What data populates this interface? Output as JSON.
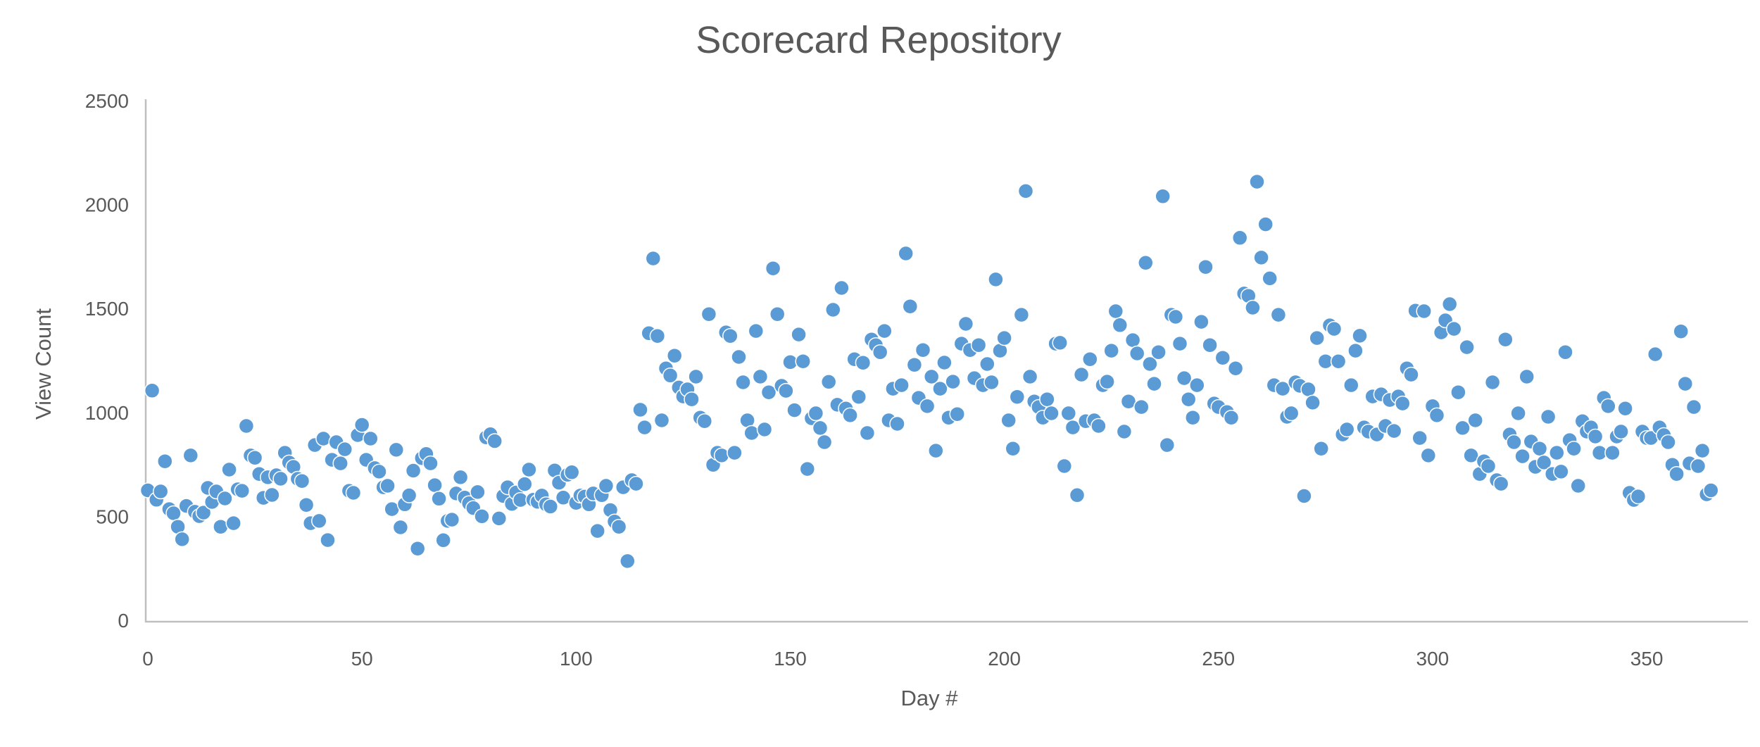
{
  "chart_data": {
    "type": "scatter",
    "title": "Scorecard Repository",
    "xlabel": "Day #",
    "ylabel": "View Count",
    "xlim": [
      0,
      374
    ],
    "ylim": [
      0,
      2500
    ],
    "x_ticks": [
      0,
      50,
      100,
      150,
      200,
      250,
      300,
      350
    ],
    "y_ticks": [
      0,
      500,
      1000,
      1500,
      2000,
      2500
    ],
    "grid": false,
    "legend": "none",
    "marker_color": "#5B9BD5",
    "marker_halo_color": "#FFFFFF",
    "axis_line_color": "#BFBFBF",
    "text_color": "#595959",
    "points": [
      [
        0,
        625
      ],
      [
        1,
        1105
      ],
      [
        2,
        580
      ],
      [
        3,
        620
      ],
      [
        4,
        765
      ],
      [
        5,
        535
      ],
      [
        6,
        515
      ],
      [
        7,
        450
      ],
      [
        8,
        390
      ],
      [
        9,
        550
      ],
      [
        10,
        793
      ],
      [
        11,
        522
      ],
      [
        12,
        501
      ],
      [
        13,
        518
      ],
      [
        14,
        637
      ],
      [
        15,
        569
      ],
      [
        16,
        620
      ],
      [
        17,
        450
      ],
      [
        18,
        586
      ],
      [
        19,
        725
      ],
      [
        20,
        467
      ],
      [
        21,
        630
      ],
      [
        22,
        623
      ],
      [
        23,
        935
      ],
      [
        24,
        793
      ],
      [
        25,
        782
      ],
      [
        26,
        704
      ],
      [
        27,
        589
      ],
      [
        28,
        688
      ],
      [
        29,
        603
      ],
      [
        30,
        698
      ],
      [
        31,
        681
      ],
      [
        32,
        806
      ],
      [
        33,
        759
      ],
      [
        34,
        738
      ],
      [
        35,
        681
      ],
      [
        36,
        670
      ],
      [
        37,
        555
      ],
      [
        38,
        467
      ],
      [
        39,
        843
      ],
      [
        40,
        478
      ],
      [
        41,
        874
      ],
      [
        42,
        386
      ],
      [
        43,
        772
      ],
      [
        44,
        857
      ],
      [
        45,
        755
      ],
      [
        46,
        823
      ],
      [
        47,
        623
      ],
      [
        48,
        613
      ],
      [
        49,
        891
      ],
      [
        50,
        940
      ],
      [
        51,
        772
      ],
      [
        52,
        874
      ],
      [
        53,
        732
      ],
      [
        54,
        715
      ],
      [
        55,
        640
      ],
      [
        56,
        647
      ],
      [
        57,
        535
      ],
      [
        58,
        820
      ],
      [
        59,
        447
      ],
      [
        60,
        558
      ],
      [
        61,
        601
      ],
      [
        62,
        720
      ],
      [
        63,
        345
      ],
      [
        64,
        780
      ],
      [
        65,
        800
      ],
      [
        66,
        755
      ],
      [
        67,
        650
      ],
      [
        68,
        585
      ],
      [
        69,
        385
      ],
      [
        70,
        478
      ],
      [
        71,
        484
      ],
      [
        72,
        610
      ],
      [
        73,
        688
      ],
      [
        74,
        590
      ],
      [
        75,
        563
      ],
      [
        76,
        540
      ],
      [
        77,
        617
      ],
      [
        78,
        500
      ],
      [
        79,
        880
      ],
      [
        80,
        895
      ],
      [
        81,
        862
      ],
      [
        82,
        490
      ],
      [
        83,
        598
      ],
      [
        84,
        640
      ],
      [
        85,
        560
      ],
      [
        86,
        615
      ],
      [
        87,
        579
      ],
      [
        88,
        655
      ],
      [
        89,
        725
      ],
      [
        90,
        580
      ],
      [
        91,
        570
      ],
      [
        92,
        600
      ],
      [
        93,
        558
      ],
      [
        94,
        547
      ],
      [
        95,
        721
      ],
      [
        96,
        662
      ],
      [
        97,
        590
      ],
      [
        98,
        700
      ],
      [
        99,
        712
      ],
      [
        100,
        565
      ],
      [
        101,
        600
      ],
      [
        102,
        595
      ],
      [
        103,
        558
      ],
      [
        104,
        610
      ],
      [
        105,
        430
      ],
      [
        106,
        602
      ],
      [
        107,
        647
      ],
      [
        108,
        530
      ],
      [
        109,
        475
      ],
      [
        110,
        450
      ],
      [
        111,
        640
      ],
      [
        112,
        285
      ],
      [
        113,
        674
      ],
      [
        114,
        657
      ],
      [
        115,
        1013
      ],
      [
        116,
        928
      ],
      [
        117,
        1381
      ],
      [
        118,
        1741
      ],
      [
        119,
        1368
      ],
      [
        120,
        962
      ],
      [
        121,
        1212
      ],
      [
        122,
        1178
      ],
      [
        123,
        1273
      ],
      [
        124,
        1120
      ],
      [
        125,
        1077
      ],
      [
        126,
        1111
      ],
      [
        127,
        1063
      ],
      [
        128,
        1172
      ],
      [
        129,
        975
      ],
      [
        130,
        958
      ],
      [
        131,
        1473
      ],
      [
        132,
        748
      ],
      [
        133,
        806
      ],
      [
        134,
        793
      ],
      [
        135,
        1385
      ],
      [
        136,
        1368
      ],
      [
        137,
        806
      ],
      [
        138,
        1267
      ],
      [
        139,
        1145
      ],
      [
        140,
        962
      ],
      [
        141,
        901
      ],
      [
        142,
        1392
      ],
      [
        143,
        1172
      ],
      [
        144,
        918
      ],
      [
        145,
        1097
      ],
      [
        146,
        1693
      ],
      [
        147,
        1473
      ],
      [
        148,
        1128
      ],
      [
        149,
        1104
      ],
      [
        150,
        1242
      ],
      [
        151,
        1011
      ],
      [
        152,
        1375
      ],
      [
        153,
        1246
      ],
      [
        154,
        728
      ],
      [
        155,
        972
      ],
      [
        156,
        996
      ],
      [
        157,
        925
      ],
      [
        158,
        857
      ],
      [
        159,
        1147
      ],
      [
        160,
        1494
      ],
      [
        161,
        1037
      ],
      [
        162,
        1599
      ],
      [
        163,
        1019
      ],
      [
        164,
        986
      ],
      [
        165,
        1256
      ],
      [
        166,
        1075
      ],
      [
        167,
        1239
      ],
      [
        168,
        901
      ],
      [
        169,
        1351
      ],
      [
        170,
        1324
      ],
      [
        171,
        1290
      ],
      [
        172,
        1392
      ],
      [
        173,
        962
      ],
      [
        174,
        1114
      ],
      [
        175,
        945
      ],
      [
        176,
        1131
      ],
      [
        177,
        1765
      ],
      [
        178,
        1510
      ],
      [
        179,
        1229
      ],
      [
        180,
        1070
      ],
      [
        181,
        1300
      ],
      [
        182,
        1030
      ],
      [
        183,
        1172
      ],
      [
        184,
        816
      ],
      [
        185,
        1114
      ],
      [
        186,
        1240
      ],
      [
        187,
        975
      ],
      [
        188,
        1148
      ],
      [
        189,
        992
      ],
      [
        190,
        1331
      ],
      [
        191,
        1426
      ],
      [
        192,
        1300
      ],
      [
        193,
        1165
      ],
      [
        194,
        1324
      ],
      [
        195,
        1131
      ],
      [
        196,
        1233
      ],
      [
        197,
        1145
      ],
      [
        198,
        1640
      ],
      [
        199,
        1297
      ],
      [
        200,
        1358
      ],
      [
        201,
        962
      ],
      [
        202,
        826
      ],
      [
        203,
        1075
      ],
      [
        204,
        1470
      ],
      [
        205,
        2065
      ],
      [
        206,
        1172
      ],
      [
        207,
        1053
      ],
      [
        208,
        1026
      ],
      [
        209,
        975
      ],
      [
        210,
        1063
      ],
      [
        211,
        996
      ],
      [
        212,
        1331
      ],
      [
        213,
        1335
      ],
      [
        214,
        742
      ],
      [
        215,
        996
      ],
      [
        216,
        928
      ],
      [
        217,
        602
      ],
      [
        218,
        1182
      ],
      [
        219,
        958
      ],
      [
        220,
        1256
      ],
      [
        221,
        962
      ],
      [
        222,
        935
      ],
      [
        223,
        1131
      ],
      [
        224,
        1148
      ],
      [
        225,
        1297
      ],
      [
        226,
        1487
      ],
      [
        227,
        1420
      ],
      [
        228,
        908
      ],
      [
        229,
        1053
      ],
      [
        230,
        1348
      ],
      [
        231,
        1284
      ],
      [
        232,
        1026
      ],
      [
        233,
        1720
      ],
      [
        234,
        1233
      ],
      [
        235,
        1138
      ],
      [
        236,
        1290
      ],
      [
        237,
        2040
      ],
      [
        238,
        843
      ],
      [
        239,
        1470
      ],
      [
        240,
        1460
      ],
      [
        241,
        1331
      ],
      [
        242,
        1165
      ],
      [
        243,
        1063
      ],
      [
        244,
        975
      ],
      [
        245,
        1131
      ],
      [
        246,
        1436
      ],
      [
        247,
        1700
      ],
      [
        248,
        1324
      ],
      [
        249,
        1043
      ],
      [
        250,
        1026
      ],
      [
        251,
        1263
      ],
      [
        252,
        1002
      ],
      [
        253,
        975
      ],
      [
        254,
        1212
      ],
      [
        255,
        1840
      ],
      [
        256,
        1572
      ],
      [
        257,
        1561
      ],
      [
        258,
        1504
      ],
      [
        259,
        2110
      ],
      [
        260,
        1745
      ],
      [
        261,
        1905
      ],
      [
        262,
        1645
      ],
      [
        263,
        1131
      ],
      [
        264,
        1470
      ],
      [
        265,
        1114
      ],
      [
        266,
        979
      ],
      [
        267,
        996
      ],
      [
        268,
        1145
      ],
      [
        269,
        1128
      ],
      [
        270,
        598
      ],
      [
        271,
        1111
      ],
      [
        272,
        1047
      ],
      [
        273,
        1358
      ],
      [
        274,
        826
      ],
      [
        275,
        1246
      ],
      [
        276,
        1419
      ],
      [
        277,
        1402
      ],
      [
        278,
        1246
      ],
      [
        279,
        894
      ],
      [
        280,
        918
      ],
      [
        281,
        1131
      ],
      [
        282,
        1297
      ],
      [
        283,
        1369
      ],
      [
        284,
        928
      ],
      [
        285,
        908
      ],
      [
        286,
        1077
      ],
      [
        287,
        894
      ],
      [
        288,
        1087
      ],
      [
        289,
        935
      ],
      [
        290,
        1060
      ],
      [
        291,
        911
      ],
      [
        292,
        1077
      ],
      [
        293,
        1043
      ],
      [
        294,
        1212
      ],
      [
        295,
        1182
      ],
      [
        296,
        1490
      ],
      [
        297,
        877
      ],
      [
        298,
        1487
      ],
      [
        299,
        793
      ],
      [
        300,
        1030
      ],
      [
        301,
        986
      ],
      [
        302,
        1385
      ],
      [
        303,
        1443
      ],
      [
        304,
        1521
      ],
      [
        305,
        1402
      ],
      [
        306,
        1097
      ],
      [
        307,
        925
      ],
      [
        308,
        1314
      ],
      [
        309,
        793
      ],
      [
        310,
        962
      ],
      [
        311,
        704
      ],
      [
        312,
        765
      ],
      [
        313,
        742
      ],
      [
        314,
        1145
      ],
      [
        315,
        674
      ],
      [
        316,
        657
      ],
      [
        317,
        1351
      ],
      [
        318,
        894
      ],
      [
        319,
        857
      ],
      [
        320,
        996
      ],
      [
        321,
        789
      ],
      [
        322,
        1172
      ],
      [
        323,
        860
      ],
      [
        324,
        738
      ],
      [
        325,
        826
      ],
      [
        326,
        759
      ],
      [
        327,
        979
      ],
      [
        328,
        704
      ],
      [
        329,
        806
      ],
      [
        330,
        715
      ],
      [
        331,
        1290
      ],
      [
        332,
        867
      ],
      [
        333,
        826
      ],
      [
        334,
        647
      ],
      [
        335,
        958
      ],
      [
        336,
        908
      ],
      [
        337,
        928
      ],
      [
        338,
        884
      ],
      [
        339,
        806
      ],
      [
        340,
        1070
      ],
      [
        341,
        1030
      ],
      [
        342,
        806
      ],
      [
        343,
        884
      ],
      [
        344,
        908
      ],
      [
        345,
        1019
      ],
      [
        346,
        613
      ],
      [
        347,
        579
      ],
      [
        348,
        596
      ],
      [
        349,
        908
      ],
      [
        350,
        877
      ],
      [
        351,
        877
      ],
      [
        352,
        1280
      ],
      [
        353,
        928
      ],
      [
        354,
        891
      ],
      [
        355,
        857
      ],
      [
        356,
        748
      ],
      [
        357,
        704
      ],
      [
        358,
        1390
      ],
      [
        359,
        1138
      ],
      [
        360,
        755
      ],
      [
        361,
        1026
      ],
      [
        362,
        742
      ],
      [
        363,
        816
      ],
      [
        364,
        606
      ],
      [
        365,
        625
      ]
    ]
  }
}
